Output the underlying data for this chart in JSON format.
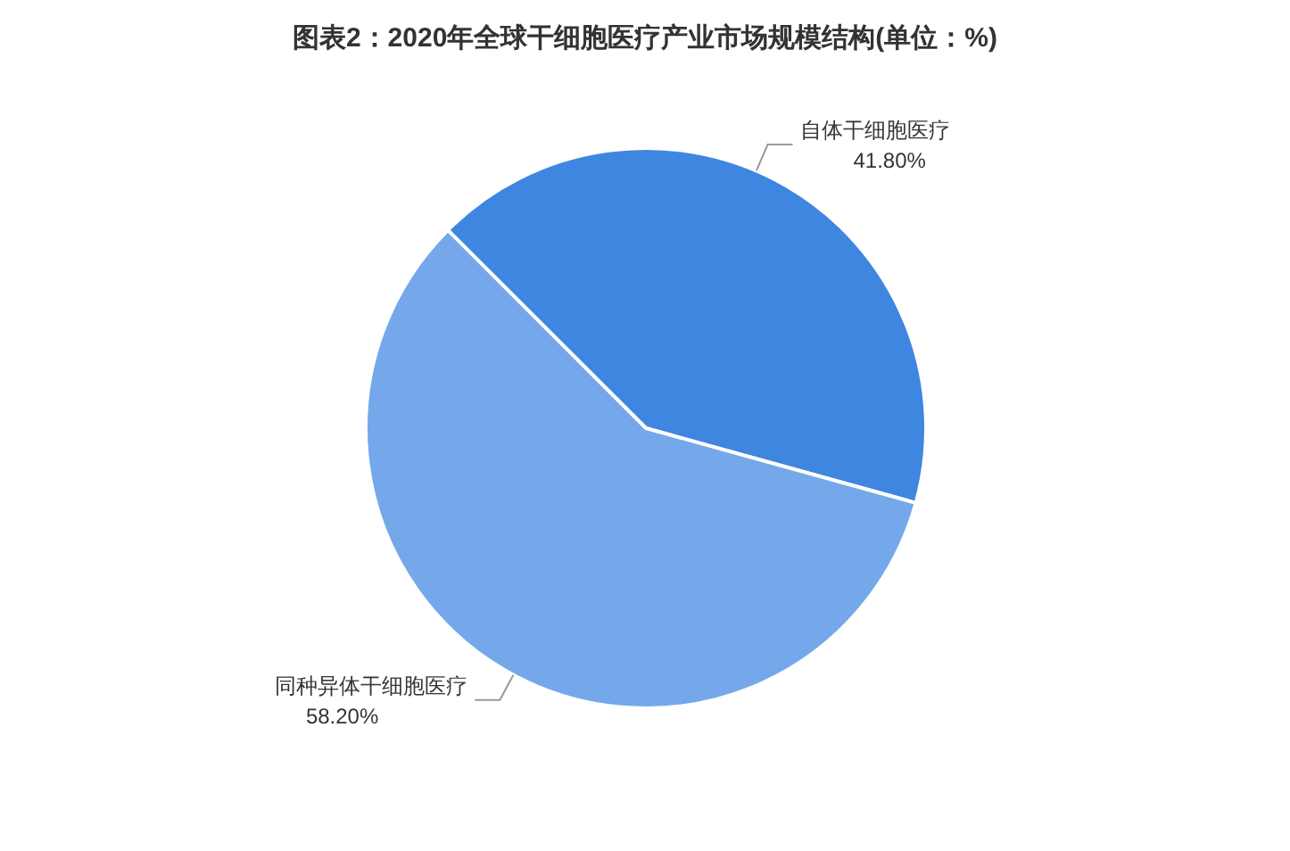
{
  "chart_data": {
    "type": "pie",
    "title": "图表2：2020年全球干细胞医疗产业市场规模结构(单位：%)",
    "categories": [
      "自体干细胞医疗",
      "同种异体干细胞医疗"
    ],
    "values": [
      41.8,
      58.2
    ],
    "colors": [
      "#3f86e0",
      "#75a8ea"
    ],
    "value_labels": [
      "41.80%",
      "58.20%"
    ]
  }
}
